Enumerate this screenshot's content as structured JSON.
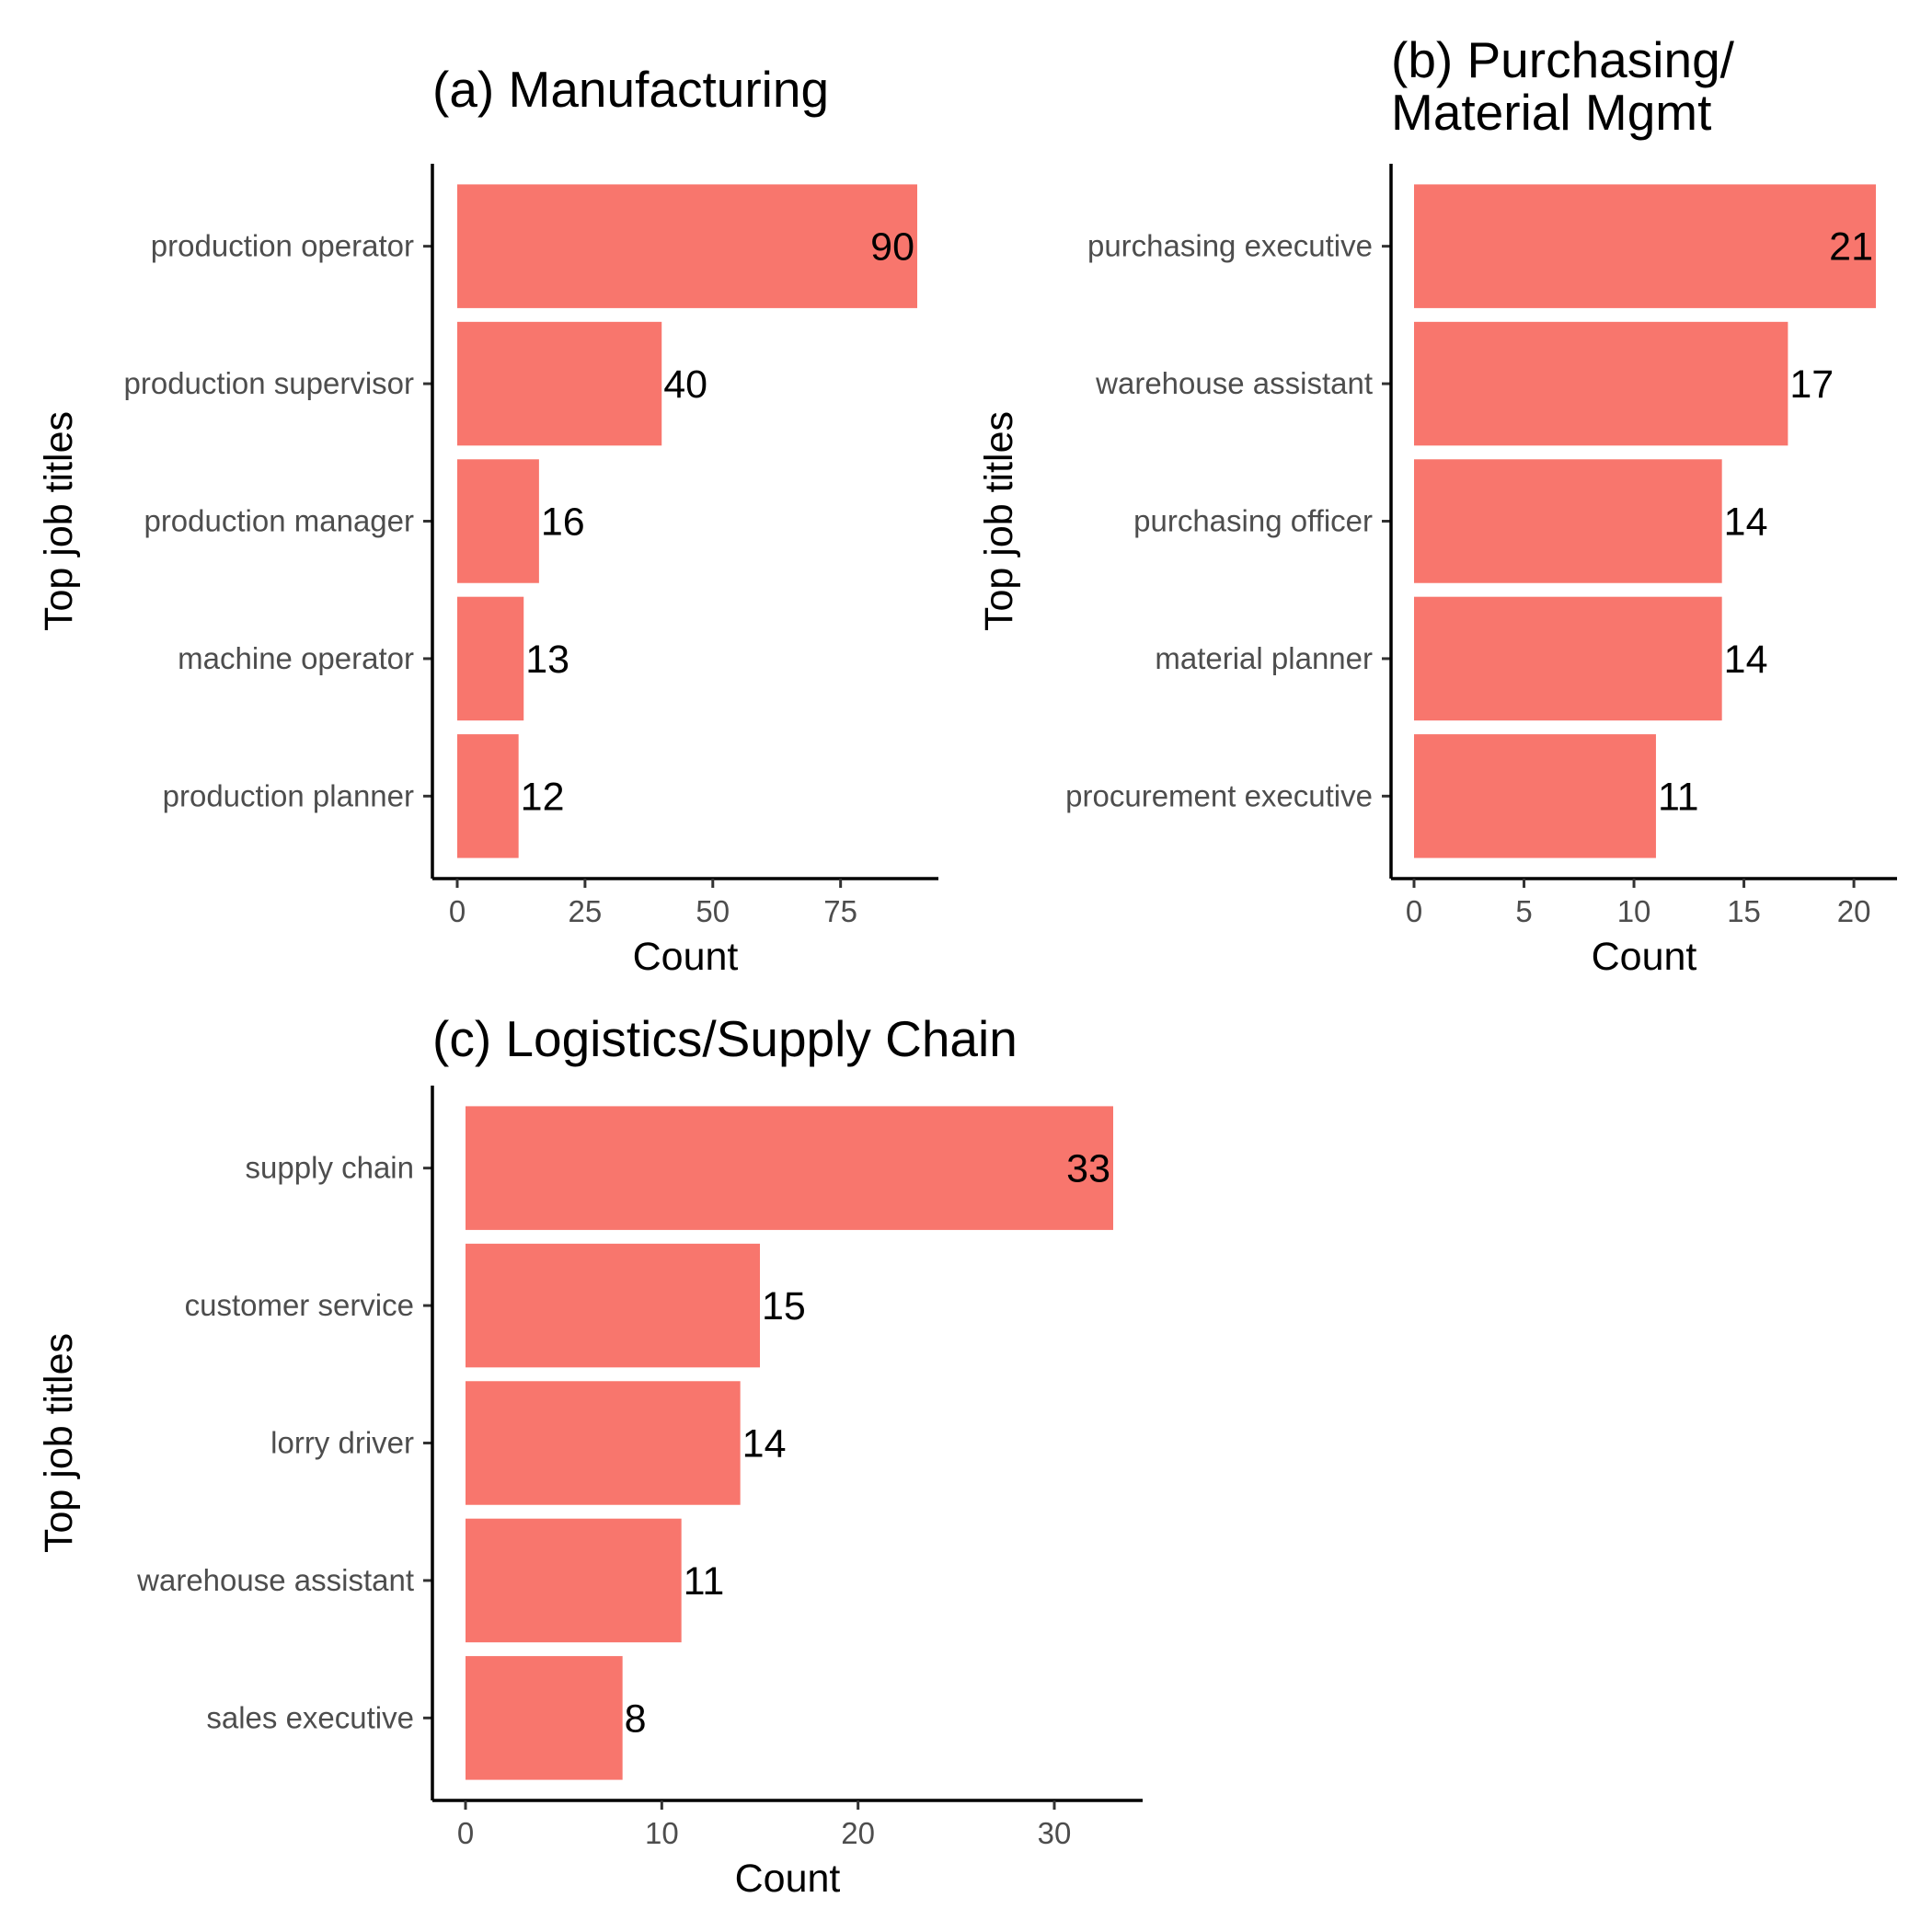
{
  "colors": {
    "bar": "#F8766D"
  },
  "chart_data": [
    {
      "type": "bar",
      "orientation": "horizontal",
      "title": "(a) Manufacturing",
      "xlabel": "Count",
      "ylabel": "Top job titles",
      "categories": [
        "production operator",
        "production supervisor",
        "production manager",
        "machine operator",
        "production planner"
      ],
      "values": [
        90,
        40,
        16,
        13,
        12
      ],
      "xlim": [
        0,
        90
      ],
      "xticks": [
        0,
        25,
        50,
        75
      ],
      "grid": false
    },
    {
      "type": "bar",
      "orientation": "horizontal",
      "title": "(b) Purchasing/\nMaterial Mgmt",
      "xlabel": "Count",
      "ylabel": "Top job titles",
      "categories": [
        "purchasing executive",
        "warehouse assistant",
        "purchasing officer",
        "material planner",
        "procurement executive"
      ],
      "values": [
        21,
        17,
        14,
        14,
        11
      ],
      "xlim": [
        0,
        21
      ],
      "xticks": [
        0,
        5,
        10,
        15,
        20
      ],
      "grid": false
    },
    {
      "type": "bar",
      "orientation": "horizontal",
      "title": "(c) Logistics/Supply Chain",
      "xlabel": "Count",
      "ylabel": "Top job titles",
      "categories": [
        "supply chain",
        "customer service",
        "lorry driver",
        "warehouse assistant",
        "sales executive"
      ],
      "values": [
        33,
        15,
        14,
        11,
        8
      ],
      "xlim": [
        0,
        33
      ],
      "xticks": [
        0,
        10,
        20,
        30
      ],
      "grid": false
    }
  ]
}
